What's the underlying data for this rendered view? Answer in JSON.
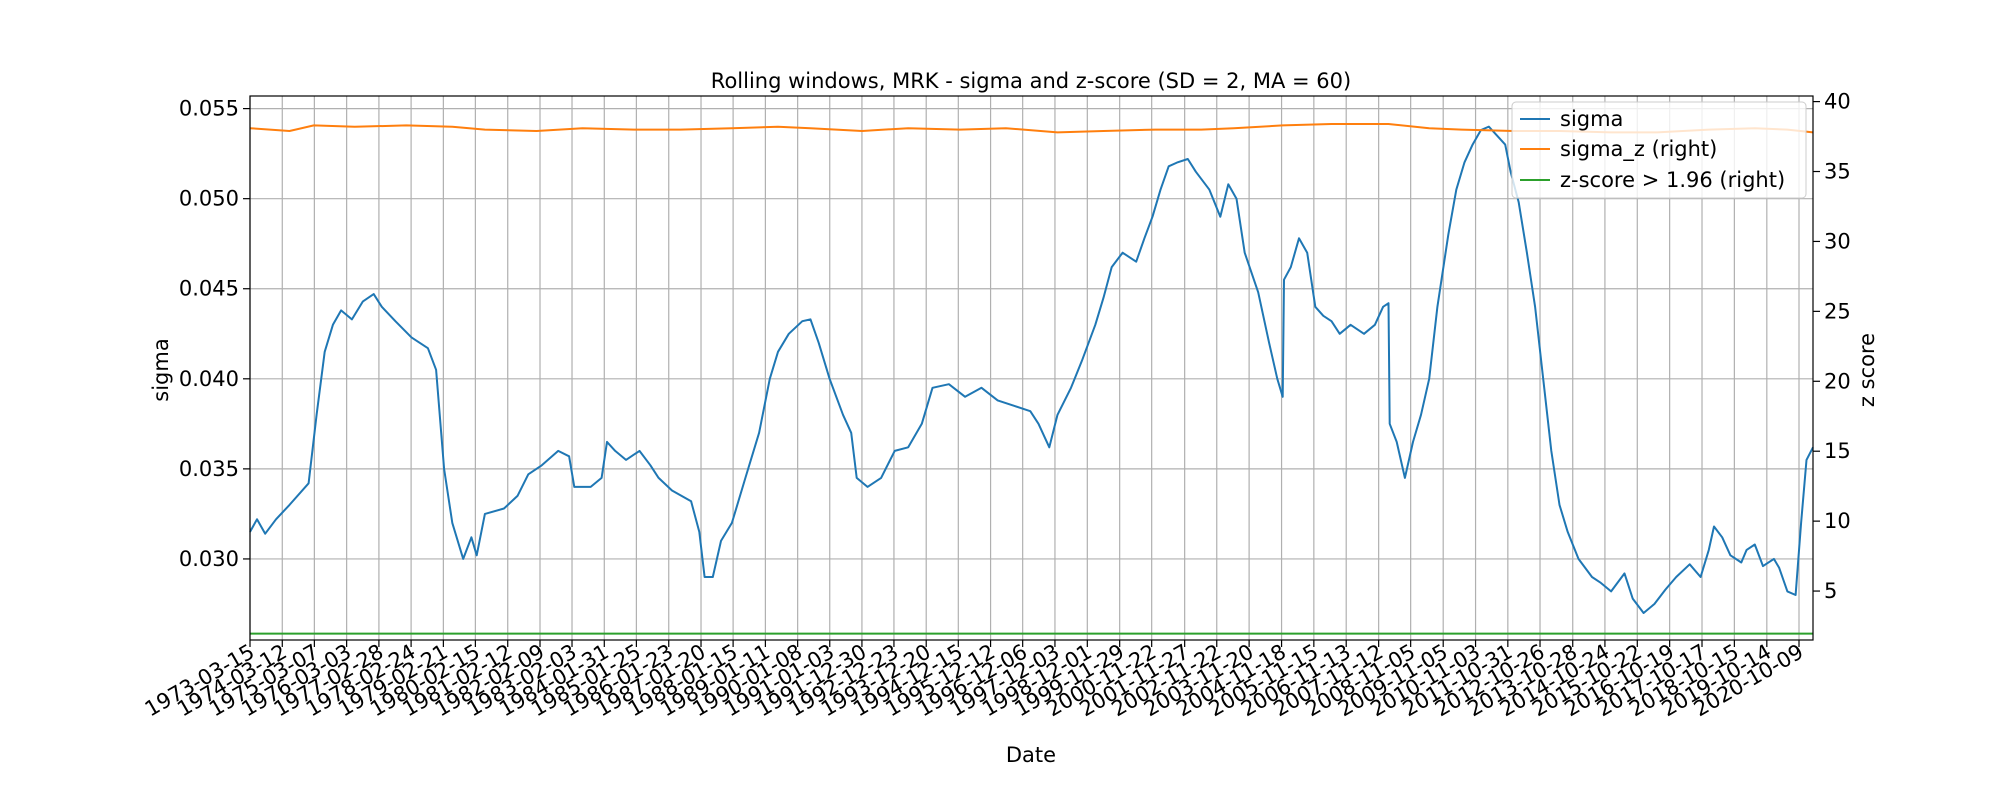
{
  "chart_data": {
    "type": "line",
    "title": "Rolling windows, MRK - sigma and z-score (SD = 2, MA = 60)",
    "xlabel": "Date",
    "ylabel": "sigma",
    "y2label": "z score",
    "xlim": [
      "1973-03-15",
      "2021-03-15"
    ],
    "ylim": [
      0.0255,
      0.0557
    ],
    "y2lim": [
      1.5,
      40.4
    ],
    "grid": true,
    "legend": "top-right",
    "x_ticks": [
      "1973-03-15",
      "1974-03-12",
      "1975-03-07",
      "1976-03-03",
      "1977-02-28",
      "1978-02-24",
      "1979-02-21",
      "1980-02-15",
      "1981-02-12",
      "1982-02-09",
      "1983-02-03",
      "1984-01-31",
      "1985-01-25",
      "1986-01-23",
      "1987-01-20",
      "1988-01-15",
      "1989-01-11",
      "1990-01-08",
      "1991-01-03",
      "1991-12-30",
      "1992-12-23",
      "1993-12-20",
      "1994-12-15",
      "1995-12-12",
      "1996-12-06",
      "1997-12-03",
      "1998-12-01",
      "1999-11-29",
      "2000-11-22",
      "2001-11-27",
      "2002-11-22",
      "2003-11-20",
      "2004-11-18",
      "2005-11-15",
      "2006-11-13",
      "2007-11-12",
      "2008-11-05",
      "2009-11-05",
      "2010-11-03",
      "2011-10-31",
      "2012-10-26",
      "2013-10-28",
      "2014-10-24",
      "2015-10-22",
      "2016-10-19",
      "2017-10-17",
      "2018-10-15",
      "2019-10-14",
      "2020-10-09"
    ],
    "y_ticks": [
      "0.030",
      "0.035",
      "0.040",
      "0.045",
      "0.050",
      "0.055"
    ],
    "y2_ticks": [
      "5",
      "10",
      "15",
      "20",
      "25",
      "30",
      "35",
      "40"
    ],
    "series": [
      {
        "name": "sigma",
        "axis": "left",
        "color": "#1f77b4",
        "points": [
          [
            "1973-03-15",
            0.0315
          ],
          [
            "1973-06-01",
            0.0322
          ],
          [
            "1973-09-01",
            0.0314
          ],
          [
            "1974-01-01",
            0.0322
          ],
          [
            "1974-06-01",
            0.033
          ],
          [
            "1975-01-01",
            0.0342
          ],
          [
            "1975-04-01",
            0.038
          ],
          [
            "1975-07-01",
            0.0415
          ],
          [
            "1975-10-01",
            0.043
          ],
          [
            "1976-01-01",
            0.0438
          ],
          [
            "1976-05-01",
            0.0433
          ],
          [
            "1976-09-01",
            0.0443
          ],
          [
            "1977-01-01",
            0.0447
          ],
          [
            "1977-04-01",
            0.044
          ],
          [
            "1977-09-01",
            0.0432
          ],
          [
            "1978-03-01",
            0.0423
          ],
          [
            "1978-09-01",
            0.0417
          ],
          [
            "1978-12-01",
            0.0405
          ],
          [
            "1979-03-01",
            0.035
          ],
          [
            "1979-06-01",
            0.032
          ],
          [
            "1979-10-01",
            0.03
          ],
          [
            "1980-01-01",
            0.0312
          ],
          [
            "1980-03-01",
            0.0302
          ],
          [
            "1980-06-01",
            0.0325
          ],
          [
            "1981-01-01",
            0.0328
          ],
          [
            "1981-06-01",
            0.0335
          ],
          [
            "1981-10-01",
            0.0347
          ],
          [
            "1982-03-01",
            0.0352
          ],
          [
            "1982-09-01",
            0.036
          ],
          [
            "1983-01-01",
            0.0357
          ],
          [
            "1983-03-01",
            0.034
          ],
          [
            "1983-09-01",
            0.034
          ],
          [
            "1984-01-01",
            0.0345
          ],
          [
            "1984-03-01",
            0.0365
          ],
          [
            "1984-06-01",
            0.036
          ],
          [
            "1984-10-01",
            0.0355
          ],
          [
            "1985-03-01",
            0.036
          ],
          [
            "1985-07-01",
            0.0352
          ],
          [
            "1985-10-01",
            0.0345
          ],
          [
            "1986-03-01",
            0.0338
          ],
          [
            "1986-10-01",
            0.0332
          ],
          [
            "1987-01-01",
            0.0315
          ],
          [
            "1987-03-01",
            0.029
          ],
          [
            "1987-06-01",
            0.029
          ],
          [
            "1987-09-01",
            0.031
          ],
          [
            "1988-01-01",
            0.032
          ],
          [
            "1988-06-01",
            0.0345
          ],
          [
            "1988-11-01",
            0.037
          ],
          [
            "1989-03-01",
            0.04
          ],
          [
            "1989-06-01",
            0.0415
          ],
          [
            "1989-10-01",
            0.0425
          ],
          [
            "1990-03-01",
            0.0432
          ],
          [
            "1990-06-01",
            0.0433
          ],
          [
            "1990-09-01",
            0.042
          ],
          [
            "1991-01-01",
            0.04
          ],
          [
            "1991-06-01",
            0.038
          ],
          [
            "1991-09-01",
            0.037
          ],
          [
            "1991-11-01",
            0.0345
          ],
          [
            "1992-03-01",
            0.034
          ],
          [
            "1992-08-01",
            0.0345
          ],
          [
            "1993-01-01",
            0.036
          ],
          [
            "1993-06-01",
            0.0362
          ],
          [
            "1993-11-01",
            0.0375
          ],
          [
            "1994-03-01",
            0.0395
          ],
          [
            "1994-09-01",
            0.0397
          ],
          [
            "1995-03-01",
            0.039
          ],
          [
            "1995-09-01",
            0.0395
          ],
          [
            "1996-03-01",
            0.0388
          ],
          [
            "1996-09-01",
            0.0385
          ],
          [
            "1997-03-01",
            0.0382
          ],
          [
            "1997-06-01",
            0.0375
          ],
          [
            "1997-10-01",
            0.0362
          ],
          [
            "1998-01-01",
            0.038
          ],
          [
            "1998-06-01",
            0.0395
          ],
          [
            "1998-10-01",
            0.041
          ],
          [
            "1999-03-01",
            0.043
          ],
          [
            "1999-06-01",
            0.0445
          ],
          [
            "1999-09-01",
            0.0462
          ],
          [
            "2000-01-01",
            0.047
          ],
          [
            "2000-06-01",
            0.0465
          ],
          [
            "2000-09-01",
            0.0478
          ],
          [
            "2000-12-01",
            0.049
          ],
          [
            "2001-03-01",
            0.0505
          ],
          [
            "2001-06-01",
            0.0518
          ],
          [
            "2001-09-01",
            0.052
          ],
          [
            "2002-01-01",
            0.0522
          ],
          [
            "2002-04-01",
            0.0515
          ],
          [
            "2002-09-01",
            0.0505
          ],
          [
            "2003-01-01",
            0.049
          ],
          [
            "2003-04-01",
            0.0508
          ],
          [
            "2003-07-01",
            0.05
          ],
          [
            "2003-10-01",
            0.047
          ],
          [
            "2004-03-01",
            0.0448
          ],
          [
            "2004-07-01",
            0.042
          ],
          [
            "2004-10-01",
            0.04
          ],
          [
            "2004-12-01",
            0.039
          ],
          [
            "2004-12-15",
            0.0455
          ],
          [
            "2005-03-01",
            0.0462
          ],
          [
            "2005-06-01",
            0.0478
          ],
          [
            "2005-09-01",
            0.047
          ],
          [
            "2005-12-01",
            0.044
          ],
          [
            "2006-03-01",
            0.0435
          ],
          [
            "2006-06-01",
            0.0432
          ],
          [
            "2006-09-01",
            0.0425
          ],
          [
            "2007-01-01",
            0.043
          ],
          [
            "2007-06-01",
            0.0425
          ],
          [
            "2007-10-01",
            0.043
          ],
          [
            "2008-01-01",
            0.044
          ],
          [
            "2008-03-01",
            0.0442
          ],
          [
            "2008-03-15",
            0.0375
          ],
          [
            "2008-06-01",
            0.0365
          ],
          [
            "2008-09-01",
            0.0345
          ],
          [
            "2008-12-01",
            0.0365
          ],
          [
            "2009-03-01",
            0.038
          ],
          [
            "2009-06-01",
            0.04
          ],
          [
            "2009-09-01",
            0.044
          ],
          [
            "2010-01-01",
            0.048
          ],
          [
            "2010-04-01",
            0.0505
          ],
          [
            "2010-07-01",
            0.052
          ],
          [
            "2010-10-01",
            0.053
          ],
          [
            "2011-01-01",
            0.0538
          ],
          [
            "2011-04-01",
            0.054
          ],
          [
            "2011-07-01",
            0.0535
          ],
          [
            "2011-10-01",
            0.053
          ],
          [
            "2011-12-01",
            0.0515
          ],
          [
            "2012-03-01",
            0.0498
          ],
          [
            "2012-06-01",
            0.047
          ],
          [
            "2012-09-01",
            0.044
          ],
          [
            "2012-12-01",
            0.04
          ],
          [
            "2013-03-01",
            0.036
          ],
          [
            "2013-06-01",
            0.033
          ],
          [
            "2013-09-01",
            0.0315
          ],
          [
            "2014-01-01",
            0.03
          ],
          [
            "2014-06-01",
            0.029
          ],
          [
            "2014-09-01",
            0.0287
          ],
          [
            "2015-01-01",
            0.0282
          ],
          [
            "2015-06-01",
            0.0292
          ],
          [
            "2015-09-01",
            0.0278
          ],
          [
            "2016-01-01",
            0.027
          ],
          [
            "2016-05-01",
            0.0275
          ],
          [
            "2016-09-01",
            0.0283
          ],
          [
            "2017-01-01",
            0.029
          ],
          [
            "2017-06-01",
            0.0297
          ],
          [
            "2017-10-01",
            0.029
          ],
          [
            "2018-01-01",
            0.0305
          ],
          [
            "2018-03-01",
            0.0318
          ],
          [
            "2018-06-01",
            0.0312
          ],
          [
            "2018-09-01",
            0.0302
          ],
          [
            "2019-01-01",
            0.0298
          ],
          [
            "2019-03-01",
            0.0305
          ],
          [
            "2019-06-01",
            0.0308
          ],
          [
            "2019-09-01",
            0.0296
          ],
          [
            "2020-01-01",
            0.03
          ],
          [
            "2020-03-01",
            0.0295
          ],
          [
            "2020-06-01",
            0.0282
          ],
          [
            "2020-09-01",
            0.028
          ],
          [
            "2020-11-01",
            0.032
          ],
          [
            "2021-01-01",
            0.0355
          ],
          [
            "2021-03-15",
            0.0362
          ]
        ]
      },
      {
        "name": "sigma_z (right)",
        "axis": "right",
        "color": "#ff7f0e",
        "points": [
          [
            "1973-03-15",
            38.1
          ],
          [
            "1974-06-01",
            37.9
          ],
          [
            "1975-03-01",
            38.3
          ],
          [
            "1976-06-01",
            38.2
          ],
          [
            "1978-01-01",
            38.3
          ],
          [
            "1979-06-01",
            38.2
          ],
          [
            "1980-06-01",
            38.0
          ],
          [
            "1982-01-01",
            37.9
          ],
          [
            "1983-06-01",
            38.1
          ],
          [
            "1985-01-01",
            38.0
          ],
          [
            "1986-06-01",
            38.0
          ],
          [
            "1988-01-01",
            38.1
          ],
          [
            "1989-06-01",
            38.2
          ],
          [
            "1990-06-01",
            38.1
          ],
          [
            "1992-01-01",
            37.9
          ],
          [
            "1993-06-01",
            38.1
          ],
          [
            "1995-01-01",
            38.0
          ],
          [
            "1996-06-01",
            38.1
          ],
          [
            "1998-01-01",
            37.8
          ],
          [
            "1999-06-01",
            37.9
          ],
          [
            "2001-01-01",
            38.0
          ],
          [
            "2002-06-01",
            38.0
          ],
          [
            "2003-06-01",
            38.1
          ],
          [
            "2004-12-01",
            38.3
          ],
          [
            "2006-06-01",
            38.4
          ],
          [
            "2008-03-01",
            38.4
          ],
          [
            "2009-06-01",
            38.1
          ],
          [
            "2010-06-01",
            38.0
          ],
          [
            "2012-01-01",
            37.9
          ],
          [
            "2013-06-01",
            37.9
          ],
          [
            "2015-01-01",
            37.8
          ],
          [
            "2016-06-01",
            37.8
          ],
          [
            "2018-01-01",
            38.0
          ],
          [
            "2019-06-01",
            38.1
          ],
          [
            "2020-06-01",
            38.0
          ],
          [
            "2021-03-15",
            37.8
          ]
        ]
      },
      {
        "name": "z-score > 1.96 (right)",
        "axis": "right",
        "color": "#2ca02c",
        "points": [
          [
            "1973-03-15",
            1.96
          ],
          [
            "2021-03-15",
            1.96
          ]
        ]
      }
    ]
  }
}
